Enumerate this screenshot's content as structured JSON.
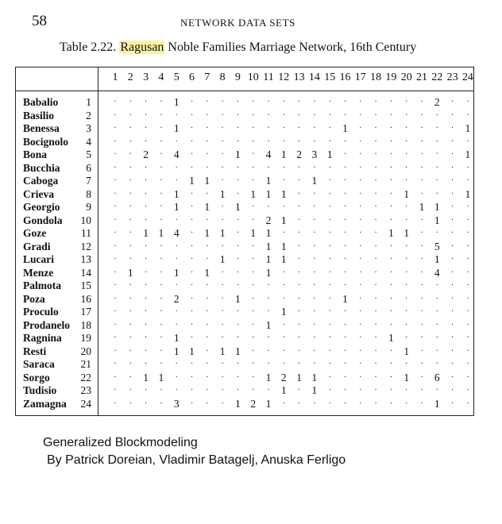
{
  "page": {
    "number": "58",
    "running_head": "NETWORK DATA SETS"
  },
  "caption": {
    "prefix": "Table 2.22.",
    "highlight": "Ragusan",
    "rest": "Noble Families Marriage Network, 16th Century"
  },
  "table": {
    "columns": [
      "1",
      "2",
      "3",
      "4",
      "5",
      "6",
      "7",
      "8",
      "9",
      "10",
      "11",
      "12",
      "13",
      "14",
      "15",
      "16",
      "17",
      "18",
      "19",
      "20",
      "21",
      "22",
      "23",
      "24"
    ],
    "rows": [
      {
        "name": "Babalio",
        "num": "1",
        "cells": [
          "·",
          "·",
          "·",
          "·",
          "1",
          "·",
          "·",
          "·",
          "·",
          "·",
          "·",
          "·",
          "·",
          "·",
          "·",
          "·",
          "·",
          "·",
          "·",
          "·",
          "·",
          "2",
          "·",
          "·"
        ]
      },
      {
        "name": "Basilio",
        "num": "2",
        "cells": [
          "·",
          "·",
          "·",
          "·",
          "·",
          "·",
          "·",
          "·",
          "·",
          "·",
          "·",
          "·",
          "·",
          "·",
          "·",
          "·",
          "·",
          "·",
          "·",
          "·",
          "·",
          "·",
          "·",
          "·"
        ]
      },
      {
        "name": "Benessa",
        "num": "3",
        "cells": [
          "·",
          "·",
          "·",
          "·",
          "1",
          "·",
          "·",
          "·",
          "·",
          "·",
          "·",
          "·",
          "·",
          "·",
          "·",
          "1",
          "·",
          "·",
          "·",
          "·",
          "·",
          "·",
          "·",
          "1"
        ]
      },
      {
        "name": "Bocignolo",
        "num": "4",
        "cells": [
          "·",
          "·",
          "·",
          "·",
          "·",
          "·",
          "·",
          "·",
          "·",
          "·",
          "·",
          "·",
          "·",
          "·",
          "·",
          "·",
          "·",
          "·",
          "·",
          "·",
          "·",
          "·",
          "·",
          "·"
        ]
      },
      {
        "name": "Bona",
        "num": "5",
        "cells": [
          "·",
          "·",
          "2",
          "·",
          "4",
          "·",
          "·",
          "·",
          "1",
          "·",
          "4",
          "1",
          "2",
          "3",
          "1",
          "·",
          "·",
          "·",
          "·",
          "·",
          "·",
          "·",
          "·",
          "1"
        ]
      },
      {
        "name": "Bucchia",
        "num": "6",
        "cells": [
          "·",
          "·",
          "·",
          "·",
          "·",
          "·",
          "·",
          "·",
          "·",
          "·",
          "·",
          "·",
          "·",
          "·",
          "·",
          "·",
          "·",
          "·",
          "·",
          "·",
          "·",
          "·",
          "·",
          "·"
        ]
      },
      {
        "name": "Caboga",
        "num": "7",
        "cells": [
          "·",
          "·",
          "·",
          "·",
          "·",
          "1",
          "1",
          "·",
          "·",
          "·",
          "1",
          "·",
          "·",
          "1",
          "·",
          "·",
          "·",
          "·",
          "·",
          "·",
          "·",
          "·",
          "·",
          "·"
        ]
      },
      {
        "name": "Crieva",
        "num": "8",
        "cells": [
          "·",
          "·",
          "·",
          "·",
          "1",
          "·",
          "·",
          "1",
          "·",
          "1",
          "1",
          "1",
          "·",
          "·",
          "·",
          "·",
          "·",
          "·",
          "·",
          "1",
          "·",
          "·",
          "·",
          "1"
        ]
      },
      {
        "name": "Georgio",
        "num": "9",
        "cells": [
          "·",
          "·",
          "·",
          "·",
          "1",
          "·",
          "1",
          "·",
          "1",
          "·",
          "·",
          "·",
          "·",
          "·",
          "·",
          "·",
          "·",
          "·",
          "·",
          "·",
          "1",
          "1",
          "·",
          "·"
        ]
      },
      {
        "name": "Gondola",
        "num": "10",
        "cells": [
          "·",
          "·",
          "·",
          "·",
          "·",
          "·",
          "·",
          "·",
          "·",
          "·",
          "2",
          "1",
          "·",
          "·",
          "·",
          "·",
          "·",
          "·",
          "·",
          "·",
          "·",
          "1",
          "·",
          "·"
        ]
      },
      {
        "name": "Goze",
        "num": "11",
        "cells": [
          "·",
          "·",
          "1",
          "1",
          "4",
          "·",
          "1",
          "1",
          "·",
          "1",
          "1",
          "·",
          "·",
          "·",
          "·",
          "·",
          "·",
          "·",
          "1",
          "1",
          "·",
          "·",
          "·",
          "·"
        ]
      },
      {
        "name": "Gradi",
        "num": "12",
        "cells": [
          "·",
          "·",
          "·",
          "·",
          "·",
          "·",
          "·",
          "·",
          "·",
          "·",
          "1",
          "1",
          "·",
          "·",
          "·",
          "·",
          "·",
          "·",
          "·",
          "·",
          "·",
          "5",
          "·",
          "·"
        ]
      },
      {
        "name": "Lucari",
        "num": "13",
        "cells": [
          "·",
          "·",
          "·",
          "·",
          "·",
          "·",
          "·",
          "1",
          "·",
          "·",
          "1",
          "1",
          "·",
          "·",
          "·",
          "·",
          "·",
          "·",
          "·",
          "·",
          "·",
          "1",
          "·",
          "·"
        ]
      },
      {
        "name": "Menze",
        "num": "14",
        "cells": [
          "·",
          "1",
          "·",
          "·",
          "1",
          "·",
          "1",
          "·",
          "·",
          "·",
          "1",
          "·",
          "·",
          "·",
          "·",
          "·",
          "·",
          "·",
          "·",
          "·",
          "·",
          "4",
          "·",
          "·"
        ]
      },
      {
        "name": "Palmota",
        "num": "15",
        "cells": [
          "·",
          "·",
          "·",
          "·",
          "·",
          "·",
          "·",
          "·",
          "·",
          "·",
          "·",
          "·",
          "·",
          "·",
          "·",
          "·",
          "·",
          "·",
          "·",
          "·",
          "·",
          "·",
          "·",
          "·"
        ]
      },
      {
        "name": "Poza",
        "num": "16",
        "cells": [
          "·",
          "·",
          "·",
          "·",
          "2",
          "·",
          "·",
          "·",
          "1",
          "·",
          "·",
          "·",
          "·",
          "·",
          "·",
          "1",
          "·",
          "·",
          "·",
          "·",
          "·",
          "·",
          "·",
          "·"
        ]
      },
      {
        "name": "Proculo",
        "num": "17",
        "cells": [
          "·",
          "·",
          "·",
          "·",
          "·",
          "·",
          "·",
          "·",
          "·",
          "·",
          "·",
          "1",
          "·",
          "·",
          "·",
          "·",
          "·",
          "·",
          "·",
          "·",
          "·",
          "·",
          "·",
          "·"
        ]
      },
      {
        "name": "Prodanelo",
        "num": "18",
        "cells": [
          "·",
          "·",
          "·",
          "·",
          "·",
          "·",
          "·",
          "·",
          "·",
          "·",
          "1",
          "·",
          "·",
          "·",
          "·",
          "·",
          "·",
          "·",
          "·",
          "·",
          "·",
          "·",
          "·",
          "·"
        ]
      },
      {
        "name": "Ragnina",
        "num": "19",
        "cells": [
          "·",
          "·",
          "·",
          "·",
          "1",
          "·",
          "·",
          "·",
          "·",
          "·",
          "·",
          "·",
          "·",
          "·",
          "·",
          "·",
          "·",
          "·",
          "1",
          "·",
          "·",
          "·",
          "·",
          "·"
        ]
      },
      {
        "name": "Resti",
        "num": "20",
        "cells": [
          "·",
          "·",
          "·",
          "·",
          "1",
          "1",
          "·",
          "1",
          "1",
          "·",
          "·",
          "·",
          "·",
          "·",
          "·",
          "·",
          "·",
          "·",
          "·",
          "1",
          "·",
          "·",
          "·",
          "·"
        ]
      },
      {
        "name": "Saraca",
        "num": "21",
        "cells": [
          "·",
          "·",
          "·",
          "·",
          "·",
          "·",
          "·",
          "·",
          "·",
          "·",
          "·",
          "·",
          "·",
          "·",
          "·",
          "·",
          "·",
          "·",
          "·",
          "·",
          "·",
          "·",
          "·",
          "·"
        ]
      },
      {
        "name": "Sorgo",
        "num": "22",
        "cells": [
          "·",
          "·",
          "1",
          "1",
          "·",
          "·",
          "·",
          "·",
          "·",
          "·",
          "1",
          "2",
          "1",
          "1",
          "·",
          "·",
          "·",
          "·",
          "·",
          "1",
          "·",
          "6",
          "·",
          "·"
        ]
      },
      {
        "name": "Tudisio",
        "num": "23",
        "cells": [
          "·",
          "·",
          "·",
          "·",
          "·",
          "·",
          "·",
          "·",
          "·",
          "·",
          "·",
          "1",
          "·",
          "1",
          "·",
          "·",
          "·",
          "·",
          "·",
          "·",
          "·",
          "·",
          "·",
          "·"
        ]
      },
      {
        "name": "Zamagna",
        "num": "24",
        "cells": [
          "·",
          "·",
          "·",
          "·",
          "3",
          "·",
          "·",
          "·",
          "1",
          "2",
          "1",
          "·",
          "·",
          "·",
          "·",
          "·",
          "·",
          "·",
          "·",
          "·",
          "·",
          "1",
          "·",
          "·"
        ]
      }
    ]
  },
  "footer": {
    "line1": "Generalized Blockmodeling",
    "line2": "By Patrick Doreian, Vladimir Batagelj, Anuska Ferligo"
  }
}
